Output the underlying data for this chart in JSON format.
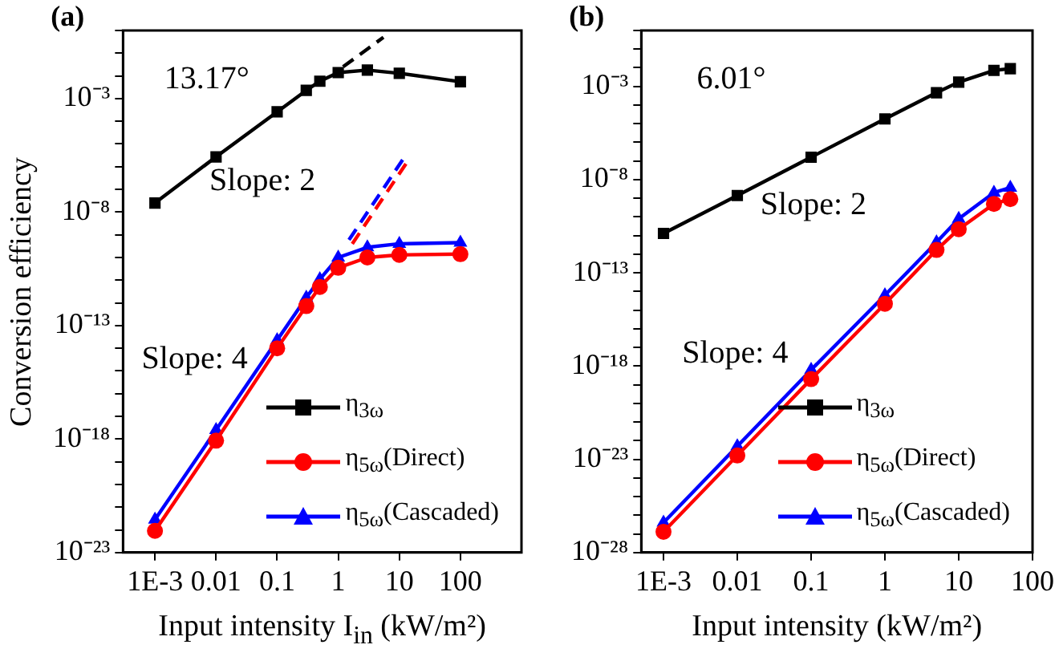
{
  "chart_data": [
    {
      "type": "line",
      "title": "(a)",
      "xlabel": "Input intensity I$_{in}$ (kW/m²)",
      "ylabel": "Conversion efficiency",
      "log": "xy",
      "grid": false,
      "legend": "bottom right",
      "line_style": "solid",
      "xlim": [
        0.0003,
        1000
      ],
      "xticks": [
        {
          "value": 0.001,
          "label": "1E-3"
        },
        0.01,
        0.1,
        1,
        10,
        100
      ],
      "ylim": [
        1e-23,
        1
      ],
      "yticks": [
        {
          "value": 1,
          "label": null
        },
        {
          "value": 0.1,
          "label": null
        },
        {
          "value": 0.01,
          "label": null
        },
        {
          "value": 0.001,
          "label": "10⁻³"
        },
        {
          "value": 0.0001,
          "label": null
        },
        {
          "value": 1e-05,
          "label": null
        },
        {
          "value": 1e-06,
          "label": null
        },
        {
          "value": 1e-07,
          "label": null
        },
        {
          "value": 1e-08,
          "label": "10⁻⁸"
        },
        {
          "value": 1e-09,
          "label": null
        },
        {
          "value": 1e-10,
          "label": null
        },
        {
          "value": 1e-11,
          "label": null
        },
        {
          "value": 1e-12,
          "label": null
        },
        {
          "value": 1e-13,
          "label": "10⁻¹³"
        },
        {
          "value": 1e-14,
          "label": null
        },
        {
          "value": 1e-15,
          "label": null
        },
        {
          "value": 1e-16,
          "label": null
        },
        {
          "value": 1e-17,
          "label": null
        },
        {
          "value": 1e-18,
          "label": "10⁻¹⁸"
        },
        {
          "value": 1e-19,
          "label": null
        },
        {
          "value": 1e-20,
          "label": null
        },
        {
          "value": 1e-21,
          "label": null
        },
        {
          "value": 1e-22,
          "label": null
        },
        {
          "value": 1e-23,
          "label": "10⁻²³"
        }
      ],
      "x": [
        0.001,
        0.01,
        0.1,
        0.3,
        0.5,
        1,
        3,
        10,
        100
      ],
      "series": [
        {
          "name": "η$_{3ω}$",
          "color": "#000000",
          "marker": "square",
          "values": [
            2.5e-08,
            2.7e-06,
            0.00026,
            0.0023,
            0.0058,
            0.014,
            0.018,
            0.013,
            0.0055
          ]
        },
        {
          "name": "η$_{5ω}$(Direct)",
          "color": "#ff0000",
          "marker": "circle",
          "values": [
            9e-23,
            8.5e-19,
            1e-14,
            7.2e-13,
            5e-12,
            3.5e-11,
            1e-10,
            1.3e-10,
            1.4e-10
          ]
        },
        {
          "name": "η$_{5ω}$(Cascaded)",
          "color": "#0000ff",
          "marker": "triangle",
          "values": [
            2.8e-22,
            2.5e-18,
            2.3e-14,
            1.7e-12,
            1.1e-11,
            1e-10,
            2.8e-10,
            4e-10,
            4.5e-10
          ]
        },
        {
          "type": "line",
          "color": "#000000",
          "marker": "none",
          "line_style": "dashed",
          "x": [
            1.2,
            5.5
          ],
          "values": [
            0.025,
            0.5
          ]
        },
        {
          "type": "line",
          "color": "#ff0000",
          "marker": "none",
          "line_style": "dashed",
          "x": [
            1.7,
            13
          ],
          "values": [
            4e-10,
            1.4e-06
          ]
        },
        {
          "type": "line",
          "color": "#0000ff",
          "marker": "none",
          "line_style": "dashed",
          "x": [
            1.5,
            12
          ],
          "values": [
            6e-10,
            2.5e-06
          ]
        }
      ],
      "annotations": [
        "13.17°",
        "Slope: 2",
        "Slope: 4"
      ]
    },
    {
      "type": "line",
      "title": "(b)",
      "xlabel": "Input intensity (kW/m²)",
      "log": "xy",
      "grid": false,
      "legend": "bottom right",
      "line_style": "solid",
      "xlim": [
        0.0005,
        100
      ],
      "xticks": [
        {
          "value": 0.001,
          "label": "1E-3"
        },
        0.01,
        0.1,
        1,
        10,
        100
      ],
      "ylim": [
        1e-28,
        1
      ],
      "yticks": [
        {
          "value": 1,
          "label": null
        },
        {
          "value": 0.1,
          "label": null
        },
        {
          "value": 0.01,
          "label": null
        },
        {
          "value": 0.001,
          "label": "10⁻³"
        },
        {
          "value": 0.0001,
          "label": null
        },
        {
          "value": 1e-05,
          "label": null
        },
        {
          "value": 1e-06,
          "label": null
        },
        {
          "value": 1e-07,
          "label": null
        },
        {
          "value": 1e-08,
          "label": "10⁻⁸"
        },
        {
          "value": 1e-09,
          "label": null
        },
        {
          "value": 1e-10,
          "label": null
        },
        {
          "value": 1e-11,
          "label": null
        },
        {
          "value": 1e-12,
          "label": null
        },
        {
          "value": 1e-13,
          "label": "10⁻¹³"
        },
        {
          "value": 1e-14,
          "label": null
        },
        {
          "value": 1e-15,
          "label": null
        },
        {
          "value": 1e-16,
          "label": null
        },
        {
          "value": 1e-17,
          "label": null
        },
        {
          "value": 1e-18,
          "label": "10⁻¹⁸"
        },
        {
          "value": 1e-19,
          "label": null
        },
        {
          "value": 1e-20,
          "label": null
        },
        {
          "value": 1e-21,
          "label": null
        },
        {
          "value": 1e-22,
          "label": null
        },
        {
          "value": 1e-23,
          "label": "10⁻²³"
        },
        {
          "value": 1e-24,
          "label": null
        },
        {
          "value": 1e-25,
          "label": null
        },
        {
          "value": 1e-26,
          "label": null
        },
        {
          "value": 1e-27,
          "label": null
        },
        {
          "value": 1e-28,
          "label": "10⁻²⁸"
        }
      ],
      "x": [
        0.001,
        0.01,
        0.1,
        1,
        5,
        10,
        30,
        50
      ],
      "series": [
        {
          "name": "η$_{3ω}$",
          "color": "#000000",
          "marker": "square",
          "values": [
            1.3e-11,
            1.4e-09,
            1.6e-07,
            1.8e-05,
            0.00046,
            0.0017,
            0.0072,
            0.0089
          ]
        },
        {
          "name": "η$_{5ω}$(Direct)",
          "color": "#ff0000",
          "marker": "circle",
          "values": [
            1.3e-27,
            1.6e-23,
            2e-19,
            2.2e-15,
            1.7e-12,
            2.2e-11,
            5e-10,
            9e-10
          ]
        },
        {
          "name": "η$_{5ω}$(Cascaded)",
          "color": "#0000ff",
          "marker": "triangle",
          "values": [
            4e-27,
            5e-23,
            6.3e-19,
            6.3e-15,
            4.4e-12,
            8e-11,
            2e-09,
            3.7e-09
          ]
        }
      ],
      "annotations": [
        "6.01°",
        "Slope: 2",
        "Slope: 4"
      ]
    }
  ]
}
